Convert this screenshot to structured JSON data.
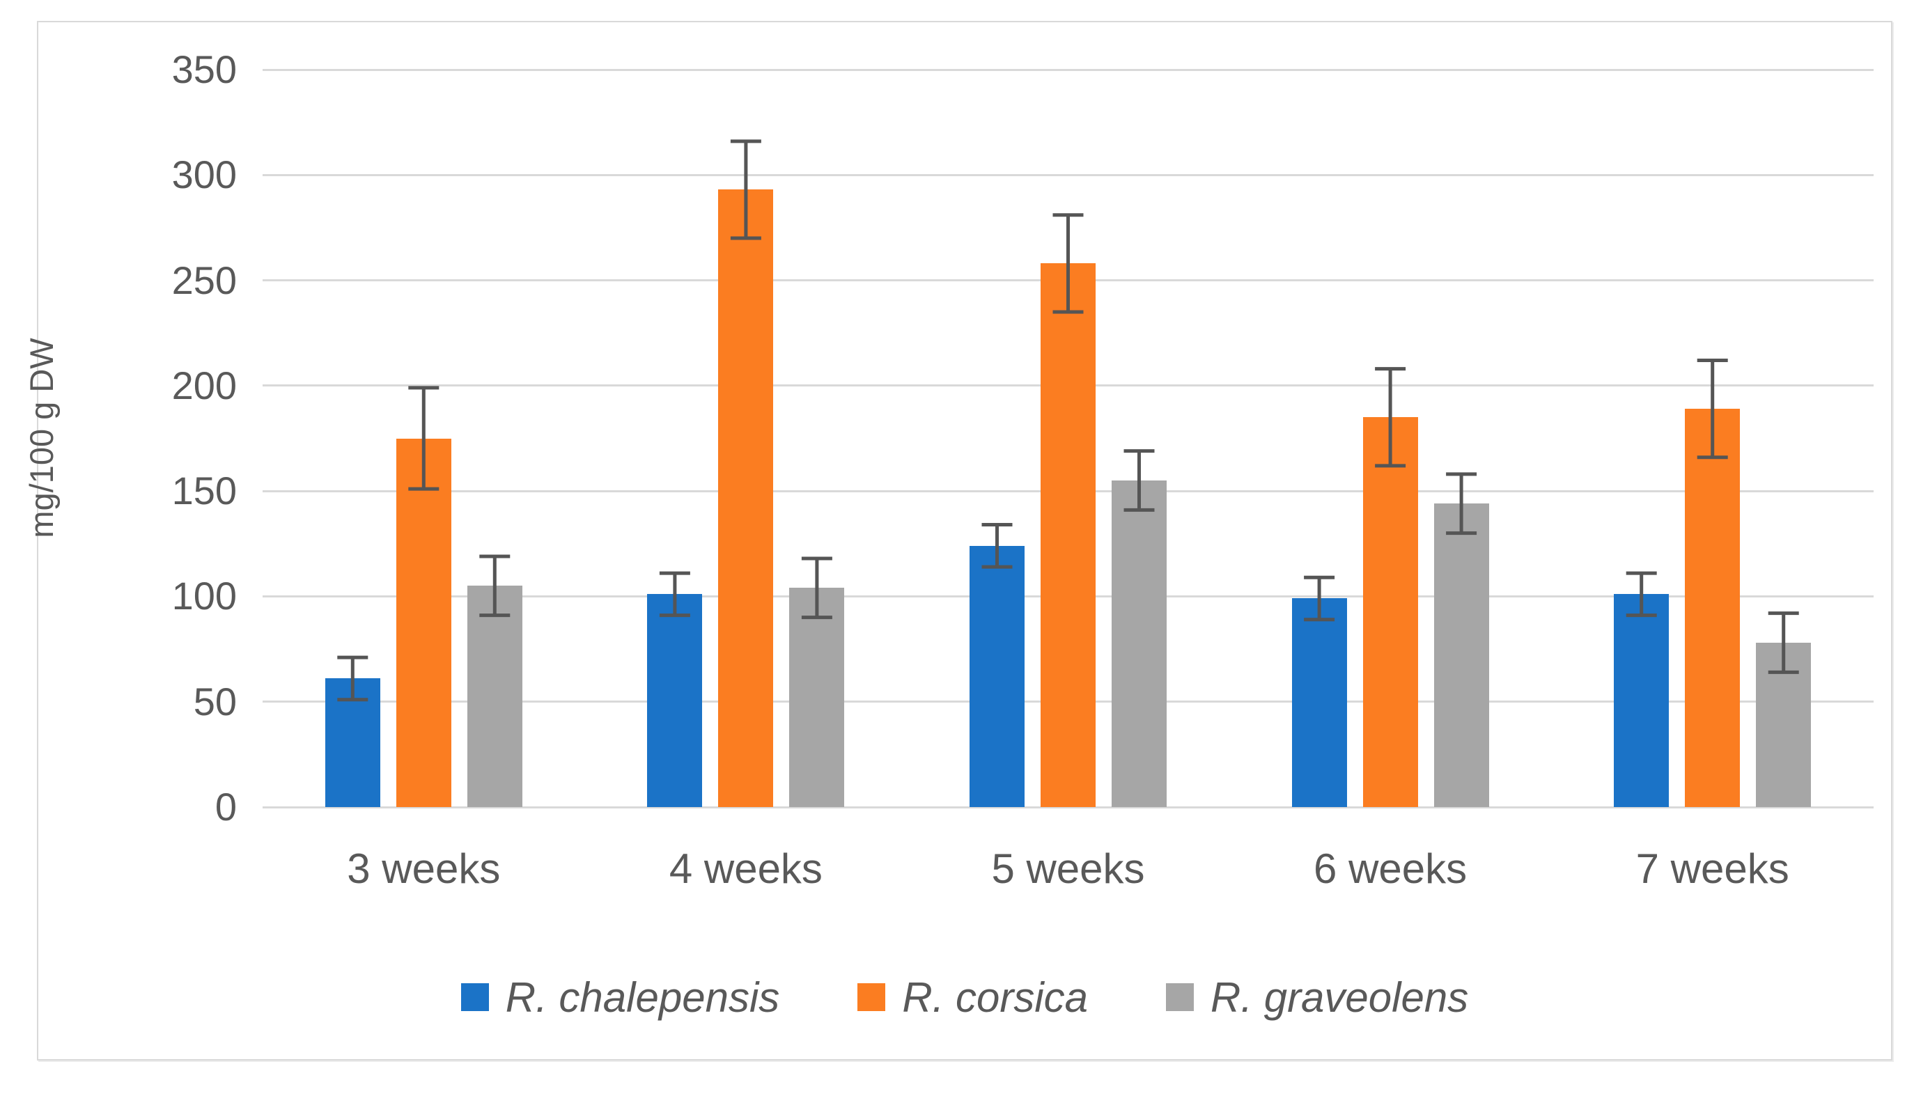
{
  "chart_data": {
    "type": "bar",
    "title": "",
    "xlabel": "",
    "ylabel": "mg/100 g DW",
    "ylim": [
      0,
      350
    ],
    "yticks": [
      0,
      50,
      100,
      150,
      200,
      250,
      300,
      350
    ],
    "grid": "horizontal",
    "legend_position": "bottom",
    "categories": [
      "3 weeks",
      "4 weeks",
      "5 weeks",
      "6 weeks",
      "7 weeks"
    ],
    "series": [
      {
        "name": "R. chalepensis",
        "color": "#1B73C7",
        "values": [
          61,
          101,
          124,
          99,
          101
        ],
        "errors": [
          10,
          10,
          10,
          10,
          10
        ]
      },
      {
        "name": "R. corsica",
        "color": "#FB7D21",
        "values": [
          175,
          293,
          258,
          185,
          189
        ],
        "errors": [
          24,
          23,
          23,
          23,
          23
        ]
      },
      {
        "name": "R. graveolens",
        "color": "#A6A6A6",
        "values": [
          105,
          104,
          155,
          144,
          78
        ],
        "errors": [
          14,
          14,
          14,
          14,
          14
        ]
      }
    ],
    "colors": {
      "gridline": "#D9D9D9",
      "axis_text": "#595959",
      "error_bar": "#555555",
      "frame_border": "#D9D9D9"
    }
  }
}
